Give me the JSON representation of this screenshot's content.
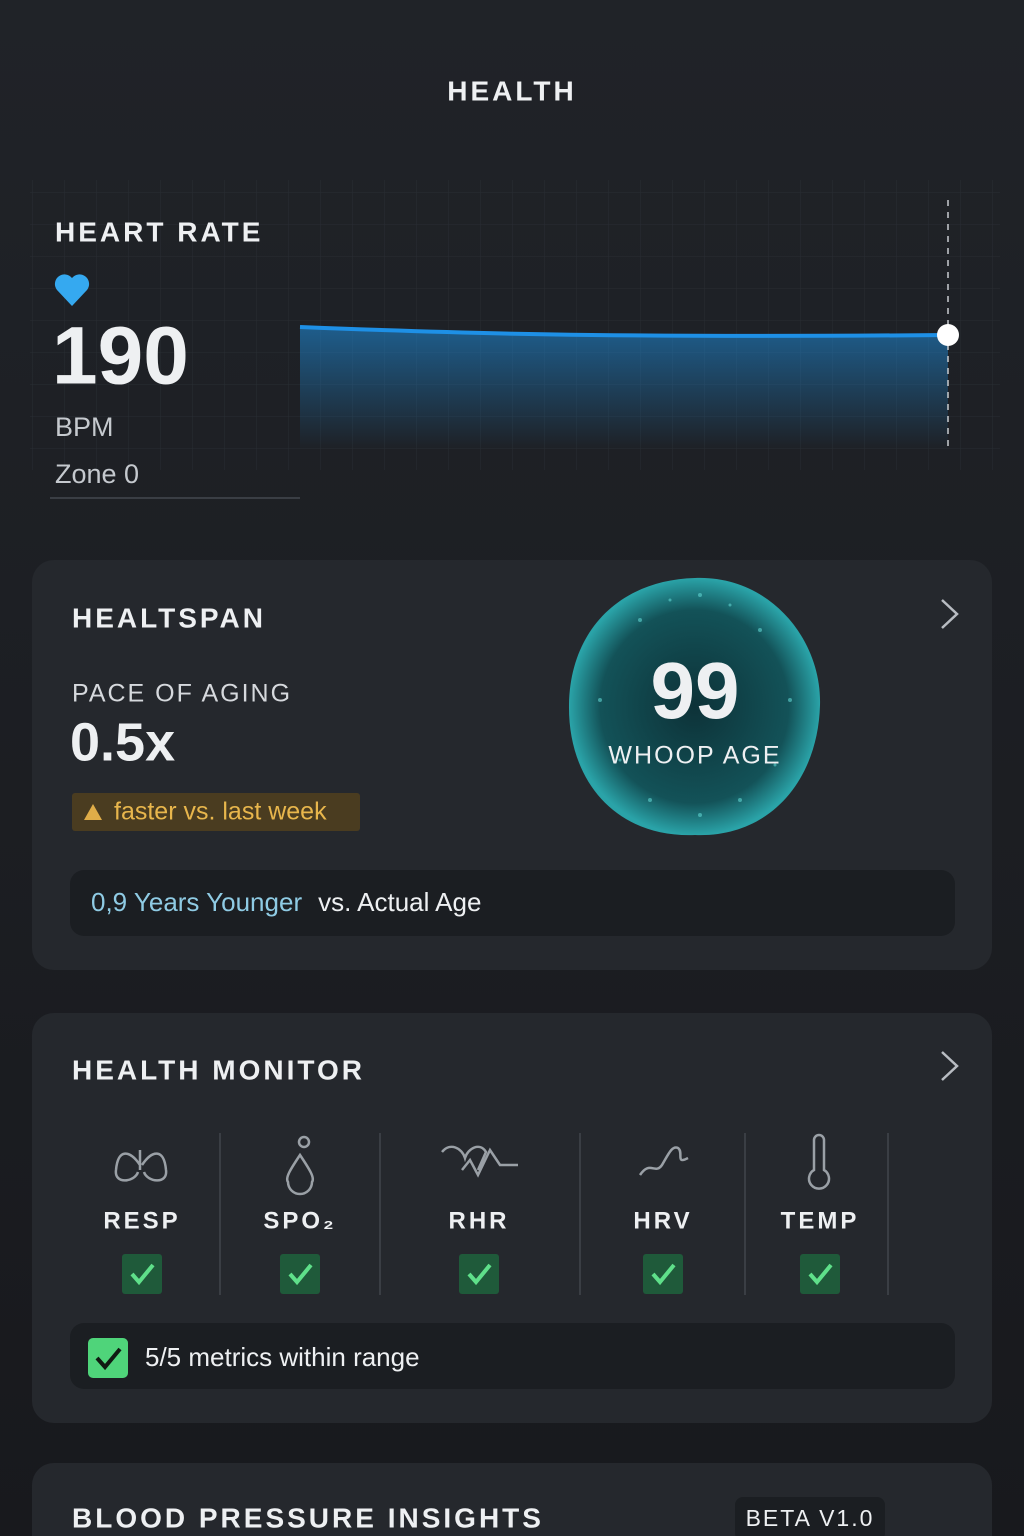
{
  "header": {
    "title": "HEALTH"
  },
  "heart_rate": {
    "title": "HEART RATE",
    "value": "190",
    "unit": "BPM",
    "zone": "Zone 0"
  },
  "healthspan": {
    "title": "HEALTSPAN",
    "pace_label": "PACE OF AGING",
    "pace_value": "0.5x",
    "trend": "faster vs. last week",
    "age": "99",
    "age_label": "WHOOP AGE",
    "comparison_highlight": "0,9 Years Younger",
    "comparison_rest": "vs. Actual Age"
  },
  "health_monitor": {
    "title": "HEALTH MONITOR",
    "metrics": [
      {
        "label": "RESP"
      },
      {
        "label": "SPO₂"
      },
      {
        "label": "RHR"
      },
      {
        "label": "HRV"
      },
      {
        "label": "TEMP"
      }
    ],
    "summary": "5/5 metrics within range"
  },
  "blood_pressure": {
    "title": "BLOOD PRESSURE INSIGHTS",
    "badge": "BETA V1.0"
  }
}
